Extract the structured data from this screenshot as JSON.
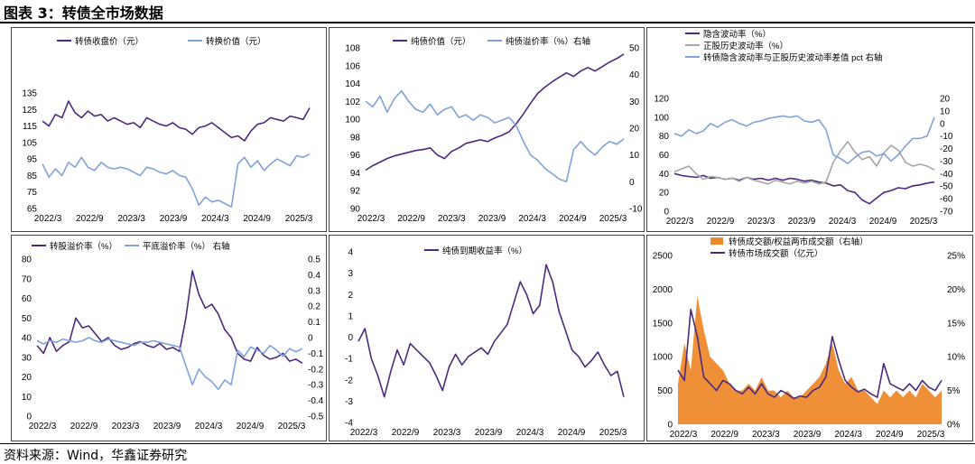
{
  "figure_title": "图表 3：转债全市场数据",
  "source_note": "资料来源：Wind，华鑫证券研究",
  "chart_data": [
    {
      "id": "p1",
      "type": "line",
      "x_labels": [
        "2022/3",
        "2022/9",
        "2023/3",
        "2023/9",
        "2024/3",
        "2024/9",
        "2025/3"
      ],
      "ylim": [
        65,
        135
      ],
      "yticks": [
        65,
        75,
        85,
        95,
        105,
        115,
        125,
        135
      ],
      "series": [
        {
          "name": "转债收盘价（元）",
          "axis": "left",
          "color": "#4B2A7B",
          "values": [
            118,
            115,
            122,
            120,
            130,
            123,
            120,
            124,
            121,
            122,
            118,
            120,
            118,
            116,
            117,
            114,
            120,
            118,
            116,
            115,
            117,
            114,
            113,
            110,
            114,
            115,
            117,
            114,
            111,
            108,
            109,
            106,
            112,
            116,
            117,
            120,
            119,
            118,
            121,
            120,
            119,
            126
          ]
        },
        {
          "name": "转换价值（元）",
          "axis": "left",
          "color": "#7FA3D8",
          "values": [
            92,
            84,
            89,
            85,
            93,
            90,
            96,
            90,
            88,
            93,
            90,
            89,
            90,
            89,
            87,
            85,
            90,
            89,
            87,
            86,
            88,
            85,
            84,
            77,
            67,
            72,
            69,
            70,
            68,
            66,
            92,
            96,
            90,
            94,
            88,
            92,
            95,
            93,
            91,
            97,
            96,
            98
          ]
        }
      ]
    },
    {
      "id": "p2",
      "type": "line",
      "x_labels": [
        "2022/3",
        "2022/9",
        "2023/3",
        "2023/9",
        "2024/3",
        "2024/9",
        "2025/3"
      ],
      "ylim": [
        90,
        108
      ],
      "yticks": [
        90,
        92,
        94,
        96,
        98,
        100,
        102,
        104,
        106,
        108
      ],
      "ylim_right": [
        -10,
        50
      ],
      "yticks_right": [
        -10,
        0,
        10,
        20,
        30,
        40,
        50
      ],
      "series": [
        {
          "name": "纯债价值（元）",
          "axis": "left",
          "color": "#4B2A7B",
          "values": [
            94.3,
            94.8,
            95.2,
            95.6,
            95.9,
            96.1,
            96.3,
            96.5,
            96.6,
            96.8,
            96.0,
            95.6,
            96.4,
            96.8,
            97.3,
            97.5,
            97.7,
            97.5,
            97.9,
            98.2,
            98.6,
            99.5,
            100.6,
            101.8,
            102.9,
            103.6,
            104.2,
            104.7,
            105.2,
            104.8,
            105.4,
            105.8,
            105.4,
            105.9,
            106.4,
            106.8,
            107.3
          ]
        },
        {
          "name": "纯债溢价率（%）右轴",
          "axis": "right",
          "color": "#7FA3D8",
          "values": [
            30,
            28,
            32,
            26,
            31,
            34,
            30,
            27,
            26,
            29,
            25,
            27,
            28,
            24,
            25,
            23,
            25,
            24,
            22,
            23,
            24,
            21,
            15,
            10,
            8,
            5,
            3,
            1,
            0,
            12,
            15,
            12,
            10,
            13,
            15,
            14,
            16
          ]
        }
      ]
    },
    {
      "id": "p3",
      "type": "line",
      "x_labels": [
        "2022/3",
        "2022/9",
        "2023/3",
        "2023/9",
        "2024/3",
        "2024/9",
        "2025/3"
      ],
      "ylim": [
        0,
        120
      ],
      "yticks": [
        0,
        20,
        40,
        60,
        80,
        100,
        120
      ],
      "ylim_right": [
        -70,
        20
      ],
      "yticks_right": [
        -70,
        -60,
        -50,
        -40,
        -30,
        -20,
        -10,
        0,
        10,
        20
      ],
      "series": [
        {
          "name": "隐含波动率（%）",
          "axis": "left",
          "color": "#4B2A7B",
          "values": [
            40,
            38,
            37,
            36,
            38,
            35,
            36,
            34,
            35,
            33,
            36,
            34,
            35,
            33,
            35,
            33,
            35,
            34,
            32,
            33,
            31,
            30,
            27,
            28,
            22,
            20,
            12,
            8,
            14,
            20,
            22,
            25,
            24,
            27,
            28,
            30,
            31
          ]
        },
        {
          "name": "正股历史波动率（%）",
          "axis": "left",
          "color": "#A6A6A6",
          "values": [
            42,
            45,
            48,
            40,
            34,
            37,
            36,
            34,
            35,
            32,
            36,
            33,
            31,
            29,
            33,
            31,
            29,
            32,
            30,
            32,
            29,
            31,
            52,
            64,
            74,
            63,
            55,
            58,
            48,
            62,
            70,
            65,
            52,
            48,
            50,
            48,
            44
          ]
        },
        {
          "name": "转债隐含波动率与正股历史波动率差值 pct 右轴",
          "axis": "right",
          "color": "#7FA3D8",
          "values": [
            -8,
            -10,
            -5,
            -8,
            -6,
            0,
            -3,
            1,
            3,
            0,
            -2,
            1,
            2,
            4,
            5,
            6,
            5,
            6,
            2,
            1,
            3,
            -5,
            -25,
            -28,
            -32,
            -27,
            -23,
            -22,
            -26,
            -24,
            -30,
            -25,
            -18,
            -12,
            -12,
            -10,
            5
          ]
        }
      ]
    },
    {
      "id": "p4",
      "type": "line",
      "x_labels": [
        "2022/3",
        "2022/9",
        "2023/3",
        "2023/9",
        "2024/3",
        "2024/9",
        "2025/3"
      ],
      "ylim": [
        0,
        80
      ],
      "yticks": [
        0,
        10,
        20,
        30,
        40,
        50,
        60,
        70,
        80
      ],
      "ylim_right": [
        -0.5,
        0.5
      ],
      "yticks_right": [
        -0.5,
        -0.4,
        -0.3,
        -0.2,
        -0.1,
        0,
        0.1,
        0.2,
        0.3,
        0.4,
        0.5
      ],
      "series": [
        {
          "name": "转股溢价率（%）",
          "axis": "left",
          "color": "#4B2A7B",
          "values": [
            36,
            32,
            40,
            33,
            36,
            38,
            50,
            45,
            46,
            42,
            38,
            40,
            36,
            34,
            35,
            37,
            38,
            36,
            35,
            37,
            34,
            35,
            33,
            50,
            74,
            62,
            55,
            57,
            52,
            44,
            40,
            32,
            29,
            28,
            35,
            31,
            29,
            30,
            32,
            28,
            29,
            27
          ]
        },
        {
          "name": "平底溢价率（%） 右轴",
          "axis": "right",
          "color": "#7FA3D8",
          "values": [
            -0.02,
            -0.04,
            -0.02,
            -0.03,
            -0.01,
            -0.02,
            -0.03,
            -0.02,
            0.0,
            -0.02,
            -0.03,
            -0.01,
            -0.02,
            -0.03,
            -0.04,
            -0.05,
            -0.03,
            -0.03,
            -0.02,
            -0.03,
            -0.04,
            -0.05,
            -0.06,
            -0.18,
            -0.3,
            -0.2,
            -0.25,
            -0.28,
            -0.33,
            -0.27,
            -0.3,
            -0.08,
            -0.12,
            -0.06,
            -0.08,
            -0.1,
            -0.05,
            -0.08,
            -0.12,
            -0.07,
            -0.09,
            -0.07
          ]
        }
      ]
    },
    {
      "id": "p5",
      "type": "line",
      "x_labels": [
        "2022/3",
        "2022/9",
        "2023/3",
        "2023/9",
        "2024/3",
        "2024/9",
        "2025/3"
      ],
      "ylim": [
        -4,
        4
      ],
      "yticks": [
        -4,
        -3,
        -2,
        -1,
        0,
        1,
        2,
        3,
        4
      ],
      "series": [
        {
          "name": "纯债到期收益率（%）",
          "axis": "left",
          "color": "#4B2A7B",
          "values": [
            -0.2,
            0.4,
            -1.0,
            -1.8,
            -2.8,
            -1.6,
            -0.6,
            -1.3,
            -0.3,
            -0.6,
            -0.9,
            -1.2,
            -1.8,
            -2.5,
            -1.4,
            -0.8,
            -1.3,
            -0.9,
            -0.7,
            -0.5,
            -0.8,
            -0.2,
            0.2,
            0.6,
            1.6,
            2.6,
            2.0,
            1.1,
            1.5,
            3.4,
            2.6,
            1.2,
            0.3,
            -0.6,
            -0.9,
            -1.4,
            -1.1,
            -0.7,
            -1.3,
            -1.8,
            -1.6,
            -2.8
          ]
        }
      ]
    },
    {
      "id": "p6",
      "type": "bar+line",
      "x_labels": [
        "2022/3",
        "2022/9",
        "2023/3",
        "2023/9",
        "2024/3",
        "2024/9",
        "2025/3"
      ],
      "ylim": [
        0,
        2500
      ],
      "yticks": [
        0,
        500,
        1000,
        1500,
        2000,
        2500
      ],
      "ylim_right": [
        0,
        25
      ],
      "yticks_right": [
        "0%",
        "5%",
        "10%",
        "15%",
        "20%",
        "25%"
      ],
      "series": [
        {
          "name": "转债成交额/权益两市成交额（右轴）",
          "axis": "right",
          "kind": "area",
          "color": "#EE8A2E",
          "values": [
            6,
            12,
            8,
            19,
            14,
            10,
            9,
            8,
            6,
            5,
            5,
            6,
            5,
            7,
            5,
            5,
            4,
            5,
            4,
            4,
            5,
            6,
            7,
            9,
            12,
            8,
            6,
            7,
            5,
            5,
            4,
            3,
            5,
            4,
            5,
            4,
            5,
            4,
            6,
            5,
            4,
            5
          ]
        },
        {
          "name": "转债市场成交额（亿元）",
          "axis": "left",
          "color": "#4B2A7B",
          "values": [
            800,
            650,
            1700,
            1300,
            700,
            600,
            500,
            650,
            600,
            500,
            450,
            550,
            450,
            600,
            450,
            400,
            500,
            450,
            380,
            420,
            400,
            500,
            550,
            700,
            1300,
            950,
            650,
            550,
            480,
            520,
            450,
            400,
            900,
            600,
            550,
            500,
            600,
            500,
            650,
            550,
            500,
            650
          ]
        }
      ]
    }
  ]
}
